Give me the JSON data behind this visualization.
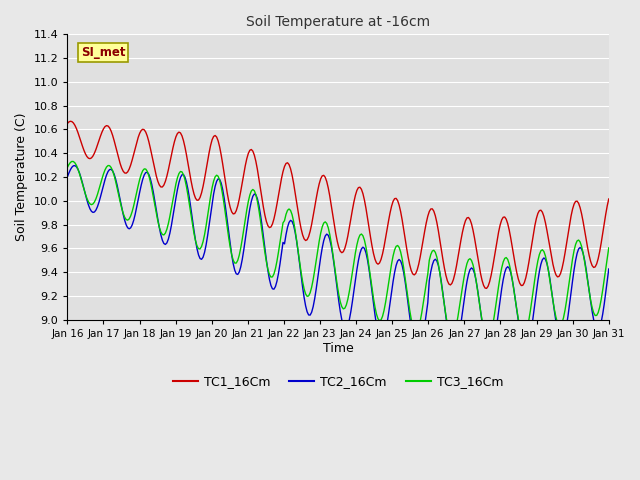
{
  "title": "Soil Temperature at -16cm",
  "xlabel": "Time",
  "ylabel": "Soil Temperature (C)",
  "ylim": [
    9.0,
    11.4
  ],
  "yticks": [
    9.0,
    9.2,
    9.4,
    9.6,
    9.8,
    10.0,
    10.2,
    10.4,
    10.6,
    10.8,
    11.0,
    11.2,
    11.4
  ],
  "xtick_labels": [
    "Jan 16",
    "Jan 17",
    "Jan 18",
    "Jan 19",
    "Jan 20",
    "Jan 21",
    "Jan 22",
    "Jan 23",
    "Jan 24",
    "Jan 25",
    "Jan 26",
    "Jan 27",
    "Jan 28",
    "Jan 29",
    "Jan 30",
    "Jan 31"
  ],
  "legend_label": "SI_met",
  "legend_box_color": "#FFFF99",
  "legend_border_color": "#999900",
  "series_labels": [
    "TC1_16Cm",
    "TC2_16Cm",
    "TC3_16Cm"
  ],
  "series_colors": [
    "#cc0000",
    "#0000cc",
    "#00cc00"
  ],
  "background_color": "#e8e8e8",
  "plot_bg_color": "#e0e0e0",
  "grid_color": "#ffffff",
  "title_color": "#333333",
  "figsize": [
    6.4,
    4.8
  ],
  "dpi": 100
}
